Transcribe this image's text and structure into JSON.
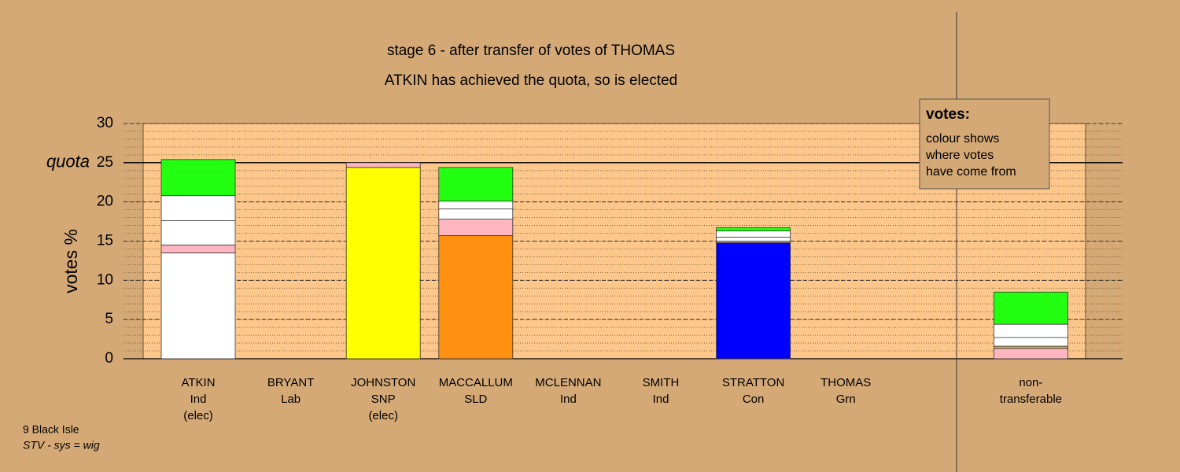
{
  "chart_data": {
    "type": "stacked_bar",
    "title": "stage 6 - after transfer of votes of THOMAS",
    "subtitle": "ATKIN has achieved the quota, so is elected",
    "ylabel": "votes %",
    "ylim": [
      0,
      30
    ],
    "yticks": [
      0,
      5,
      10,
      15,
      20,
      25,
      30
    ],
    "minor_grid_step": 1,
    "quota": {
      "value": 25,
      "label": "quota"
    },
    "categories": [
      [
        "ATKIN",
        "Ind",
        "(elec)"
      ],
      [
        "BRYANT",
        "Lab"
      ],
      [
        "JOHNSTON",
        "SNP",
        "(elec)"
      ],
      [
        "MACCALLUM",
        "SLD"
      ],
      [
        "MCLENNAN",
        "Ind"
      ],
      [
        "SMITH",
        "Ind"
      ],
      [
        "STRATTON",
        "Con"
      ],
      [
        "THOMAS",
        "Grn"
      ],
      [
        "non-",
        "transferable"
      ]
    ],
    "stacks": [
      [
        {
          "value": 13.5,
          "color": "#ffffff"
        },
        {
          "value": 1.0,
          "color": "#ffb6c1"
        },
        {
          "value": 3.1,
          "color": "#ffffff"
        },
        {
          "value": 3.2,
          "color": "#ffffff"
        },
        {
          "value": 4.6,
          "color": "#22ff11"
        }
      ],
      [],
      [
        {
          "value": 24.4,
          "color": "#ffff00"
        },
        {
          "value": 0.6,
          "color": "#ffb6c1"
        }
      ],
      [
        {
          "value": 15.7,
          "color": "#ff9010"
        },
        {
          "value": 2.1,
          "color": "#ffb6c1"
        },
        {
          "value": 1.3,
          "color": "#ffffff"
        },
        {
          "value": 1.0,
          "color": "#ffffff"
        },
        {
          "value": 4.3,
          "color": "#22ff11"
        }
      ],
      [],
      [],
      [
        {
          "value": 14.8,
          "color": "#0000ff"
        },
        {
          "value": 0.2,
          "color": "#ffb6c1"
        },
        {
          "value": 0.5,
          "color": "#ffffff"
        },
        {
          "value": 0.8,
          "color": "#ffffff"
        },
        {
          "value": 0.4,
          "color": "#22ff11"
        }
      ],
      [],
      [
        {
          "value": 1.3,
          "color": "#ffb6c1"
        },
        {
          "value": 0.3,
          "color": "#c8b060"
        },
        {
          "value": 1.1,
          "color": "#ffffff"
        },
        {
          "value": 1.7,
          "color": "#ffffff"
        },
        {
          "value": 4.1,
          "color": "#22ff11"
        }
      ]
    ],
    "legend": {
      "title": "votes:",
      "lines": [
        "colour shows",
        "where votes",
        "have come from"
      ]
    },
    "footnote": [
      "9 Black Isle",
      "STV - sys = wig"
    ]
  }
}
